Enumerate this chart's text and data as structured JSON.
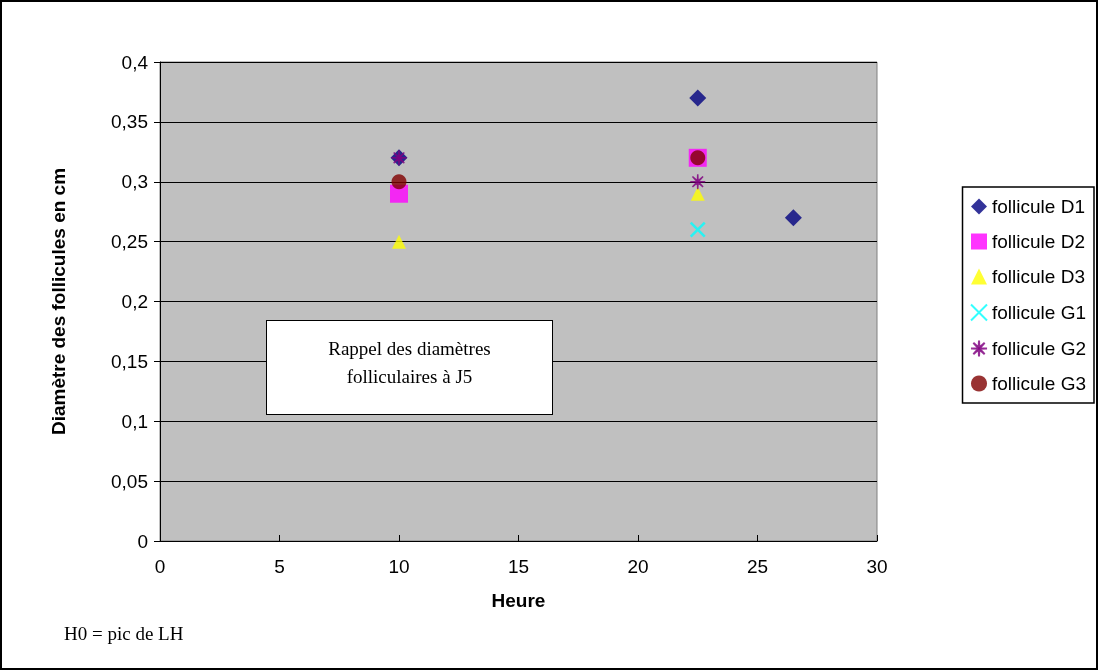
{
  "chart_data": {
    "type": "scatter",
    "xlabel": "Heure",
    "ylabel": "Diamètre des follicules en cm",
    "x": [
      10,
      22.5,
      26.5
    ],
    "series": [
      {
        "name": "follicule D1",
        "color": "#000080",
        "marker": "diamond",
        "values": [
          0.32,
          0.37,
          0.27
        ]
      },
      {
        "name": "follicule D2",
        "color": "#ff00ff",
        "marker": "square",
        "values": [
          0.29,
          0.32,
          null
        ]
      },
      {
        "name": "follicule D3",
        "color": "#ffff00",
        "marker": "triangle",
        "values": [
          0.25,
          0.29,
          null
        ]
      },
      {
        "name": "follicule G1",
        "color": "#00ffff",
        "marker": "cross",
        "values": [
          null,
          0.26,
          null
        ]
      },
      {
        "name": "follicule G2",
        "color": "#800080",
        "marker": "star",
        "values": [
          0.32,
          0.3,
          null
        ]
      },
      {
        "name": "follicule G3",
        "color": "#800000",
        "marker": "circle",
        "values": [
          0.3,
          0.32,
          null
        ]
      }
    ],
    "xlim": [
      0,
      30
    ],
    "xticks": [
      0,
      5,
      10,
      15,
      20,
      25,
      30
    ],
    "ylim": [
      0,
      0.4
    ],
    "yticks": [
      0,
      {
        "value": 0.05,
        "label": "0,05"
      },
      {
        "value": 0.1,
        "label": "0,1"
      },
      {
        "value": 0.15,
        "label": "0,15"
      },
      {
        "value": 0.2,
        "label": "0,2"
      },
      {
        "value": 0.25,
        "label": "0,25"
      },
      {
        "value": 0.3,
        "label": "0,3"
      },
      {
        "value": 0.35,
        "label": "0,35"
      },
      {
        "value": 0.4,
        "label": "0,4"
      }
    ],
    "grid": "y",
    "legend": "right",
    "annotations": [
      "Rappel des diamètres folliculaires à J5",
      "H0 = pic de LH"
    ]
  }
}
